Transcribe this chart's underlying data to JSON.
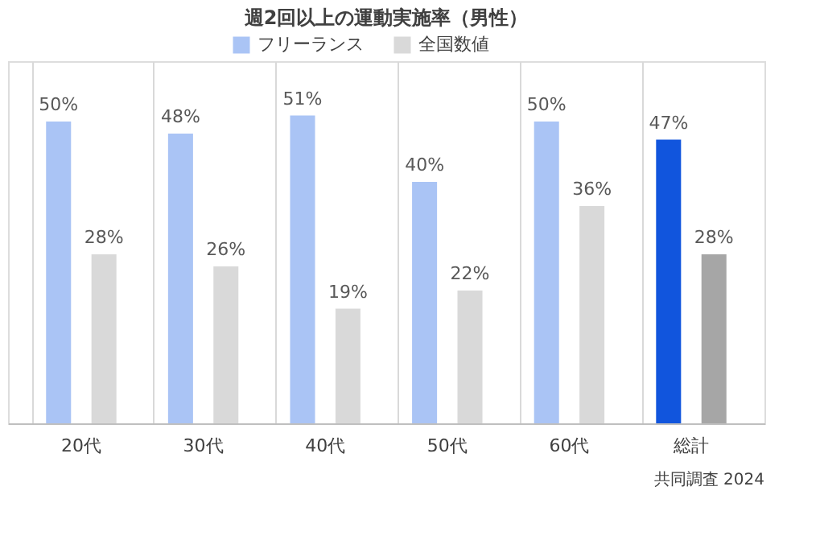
{
  "chart_data": {
    "type": "bar",
    "title": "週2回以上の運動実施率（男性）",
    "categories": [
      "20代",
      "30代",
      "40代",
      "50代",
      "60代",
      "総計"
    ],
    "series": [
      {
        "name": "フリーランス",
        "color": "#aac4f5",
        "colors": [
          "#aac4f5",
          "#aac4f5",
          "#aac4f5",
          "#aac4f5",
          "#aac4f5",
          "#1155dd"
        ],
        "values": [
          50,
          48,
          51,
          40,
          50,
          47
        ],
        "value_labels": [
          "50%",
          "48%",
          "51%",
          "40%",
          "50%",
          "47%"
        ]
      },
      {
        "name": "全国数値",
        "color": "#d9d9d9",
        "colors": [
          "#d9d9d9",
          "#d9d9d9",
          "#d9d9d9",
          "#d9d9d9",
          "#d9d9d9",
          "#a6a6a6"
        ],
        "values": [
          28,
          26,
          19,
          22,
          36,
          28
        ],
        "value_labels": [
          "28%",
          "26%",
          "19%",
          "22%",
          "36%",
          "28%"
        ]
      }
    ],
    "ylim": [
      0,
      60
    ],
    "tick_labels": "x",
    "grid": "x",
    "legend": "top",
    "annotations": [
      "共同調査 2024"
    ]
  }
}
